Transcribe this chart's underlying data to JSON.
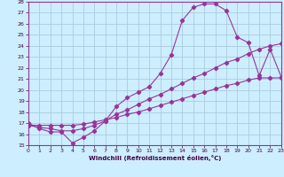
{
  "xlabel": "Windchill (Refroidissement éolien,°C)",
  "background_color": "#cceeff",
  "grid_color": "#aaccdd",
  "line_color": "#993399",
  "x_ticks": [
    0,
    1,
    2,
    3,
    4,
    5,
    6,
    7,
    8,
    9,
    10,
    11,
    12,
    13,
    14,
    15,
    16,
    17,
    18,
    19,
    20,
    21,
    22,
    23
  ],
  "y_ticks": [
    15,
    16,
    17,
    18,
    19,
    20,
    21,
    22,
    23,
    24,
    25,
    26,
    27,
    28
  ],
  "xlim": [
    0,
    23
  ],
  "ylim": [
    15,
    28
  ],
  "line1_x": [
    0,
    1,
    2,
    3,
    4,
    5,
    6,
    7,
    8,
    9,
    10,
    11,
    12,
    13,
    14,
    15,
    16,
    17,
    18,
    19,
    20,
    21,
    22,
    23
  ],
  "line1_y": [
    17.0,
    16.5,
    16.2,
    16.2,
    15.2,
    15.7,
    16.3,
    17.2,
    18.5,
    19.3,
    19.8,
    20.3,
    21.5,
    23.2,
    26.3,
    27.5,
    27.8,
    27.8,
    27.2,
    24.8,
    24.3,
    21.3,
    23.7,
    21.2
  ],
  "line2_x": [
    0,
    1,
    2,
    3,
    4,
    5,
    6,
    7,
    8,
    9,
    10,
    11,
    12,
    13,
    14,
    15,
    16,
    17,
    18,
    19,
    20,
    21,
    22,
    23
  ],
  "line2_y": [
    16.8,
    16.6,
    16.5,
    16.3,
    16.3,
    16.5,
    16.8,
    17.2,
    17.8,
    18.2,
    18.7,
    19.2,
    19.6,
    20.1,
    20.6,
    21.1,
    21.5,
    22.0,
    22.5,
    22.8,
    23.3,
    23.7,
    24.0,
    24.2
  ],
  "line3_x": [
    0,
    1,
    2,
    3,
    4,
    5,
    6,
    7,
    8,
    9,
    10,
    11,
    12,
    13,
    14,
    15,
    16,
    17,
    18,
    19,
    20,
    21,
    22,
    23
  ],
  "line3_y": [
    16.8,
    16.8,
    16.8,
    16.8,
    16.8,
    16.9,
    17.1,
    17.3,
    17.5,
    17.8,
    18.0,
    18.3,
    18.6,
    18.9,
    19.2,
    19.5,
    19.8,
    20.1,
    20.4,
    20.6,
    20.9,
    21.1,
    21.1,
    21.1
  ]
}
